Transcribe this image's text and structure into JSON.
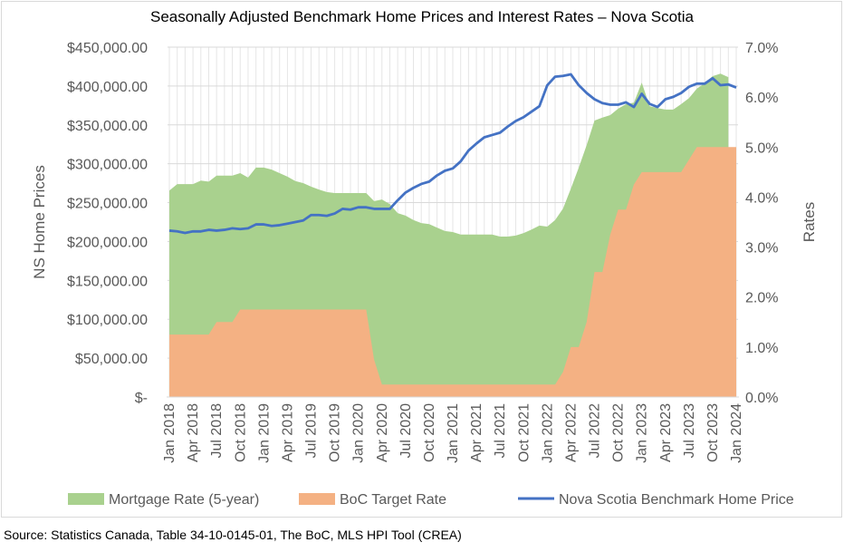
{
  "chart_data": {
    "type": "area+line",
    "title": "Seasonally Adjusted Benchmark Home Prices and Interest Rates – Nova Scotia",
    "ylabel_left": "NS Home Prices",
    "ylabel_right": "Rates",
    "ylim_left": [
      0,
      450000
    ],
    "ylim_right": [
      0,
      7
    ],
    "yticks_left": [
      "$-",
      "$50,000.00",
      "$100,000.00",
      "$150,000.00",
      "$200,000.00",
      "$250,000.00",
      "$300,000.00",
      "$350,000.00",
      "$400,000.00",
      "$450,000.00"
    ],
    "yticks_right": [
      "0.0%",
      "1.0%",
      "2.0%",
      "3.0%",
      "4.0%",
      "5.0%",
      "6.0%",
      "7.0%"
    ],
    "xticks": [
      "Jan 2018",
      "Apr 2018",
      "Jul 2018",
      "Oct 2018",
      "Jan 2019",
      "Apr 2019",
      "Jul 2019",
      "Oct 2019",
      "Jan 2020",
      "Apr 2020",
      "Jul 2020",
      "Oct 2020",
      "Jan 2021",
      "Apr 2021",
      "Jul 2021",
      "Oct 2021",
      "Jan 2022",
      "Apr 2022",
      "Jul 2022",
      "Oct 2022",
      "Jan 2023",
      "Apr 2023",
      "Jul 2023",
      "Oct 2023",
      "Jan 2024"
    ],
    "x_start": "Jan 2018",
    "x_frequency": "monthly",
    "grid": true,
    "legend_position": "bottom",
    "series": [
      {
        "name": "Mortgage Rate (5-year)",
        "kind": "area",
        "axis": "right",
        "color": "#a9d18e",
        "values": [
          4.13,
          4.26,
          4.26,
          4.26,
          4.33,
          4.31,
          4.43,
          4.43,
          4.43,
          4.48,
          4.39,
          4.59,
          4.59,
          4.55,
          4.48,
          4.41,
          4.32,
          4.28,
          4.21,
          4.15,
          4.1,
          4.08,
          4.08,
          4.08,
          4.08,
          4.08,
          3.92,
          3.95,
          3.86,
          3.68,
          3.63,
          3.54,
          3.48,
          3.46,
          3.39,
          3.32,
          3.3,
          3.25,
          3.25,
          3.25,
          3.25,
          3.25,
          3.21,
          3.21,
          3.23,
          3.28,
          3.35,
          3.43,
          3.41,
          3.54,
          3.77,
          4.17,
          4.59,
          5.04,
          5.53,
          5.59,
          5.64,
          5.77,
          5.86,
          5.89,
          6.29,
          5.82,
          5.78,
          5.75,
          5.75,
          5.86,
          5.98,
          6.17,
          6.28,
          6.42,
          6.47,
          6.4,
          null
        ]
      },
      {
        "name": "BoC Target Rate",
        "kind": "area",
        "axis": "right",
        "color": "#f4b183",
        "values": [
          1.25,
          1.25,
          1.25,
          1.25,
          1.25,
          1.25,
          1.5,
          1.5,
          1.5,
          1.75,
          1.75,
          1.75,
          1.75,
          1.75,
          1.75,
          1.75,
          1.75,
          1.75,
          1.75,
          1.75,
          1.75,
          1.75,
          1.75,
          1.75,
          1.75,
          1.75,
          0.75,
          0.25,
          0.25,
          0.25,
          0.25,
          0.25,
          0.25,
          0.25,
          0.25,
          0.25,
          0.25,
          0.25,
          0.25,
          0.25,
          0.25,
          0.25,
          0.25,
          0.25,
          0.25,
          0.25,
          0.25,
          0.25,
          0.25,
          0.25,
          0.5,
          1.0,
          1.0,
          1.5,
          2.5,
          2.5,
          3.25,
          3.75,
          3.75,
          4.25,
          4.5,
          4.5,
          4.5,
          4.5,
          4.5,
          4.5,
          4.75,
          5.0,
          5.0,
          5.0,
          5.0,
          5.0,
          5.0
        ]
      },
      {
        "name": "Nova Scotia Benchmark Home Price",
        "kind": "line",
        "axis": "left",
        "color": "#4472c4",
        "values": [
          214000,
          213000,
          211000,
          213000,
          213000,
          215000,
          214000,
          215000,
          217000,
          216000,
          217000,
          222000,
          222000,
          220000,
          221000,
          223000,
          225000,
          227000,
          234000,
          234000,
          233000,
          236000,
          242000,
          241000,
          244000,
          244000,
          242000,
          242000,
          242000,
          253000,
          263000,
          269000,
          274000,
          277000,
          285000,
          291000,
          294000,
          303000,
          317000,
          326000,
          334000,
          337000,
          340000,
          348000,
          355000,
          360000,
          367000,
          374000,
          401000,
          412000,
          413000,
          415000,
          401000,
          391000,
          383000,
          378000,
          376000,
          376000,
          379000,
          373000,
          390000,
          377000,
          373000,
          383000,
          386000,
          391000,
          399000,
          403000,
          403000,
          410000,
          401000,
          402000,
          398000
        ]
      }
    ]
  },
  "source": "Source: Statistics Canada, Table 34-10-0145-01, The BoC, MLS HPI Tool (CREA)"
}
